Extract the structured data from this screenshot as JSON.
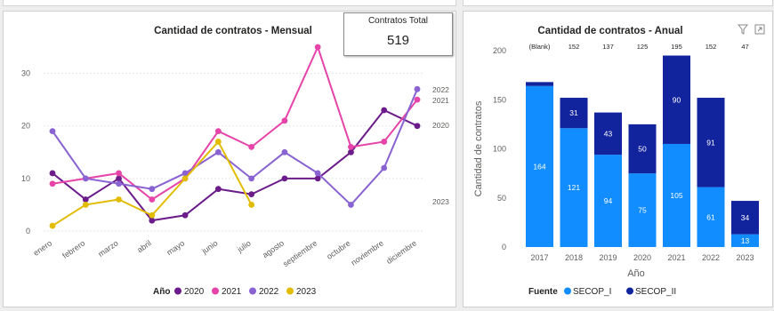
{
  "kpi": {
    "label": "Contratos Total",
    "value": "519"
  },
  "icons": {
    "filter": "filter-icon",
    "focus": "focus-mode-icon"
  },
  "chart_data": [
    {
      "type": "line",
      "title": "Cantidad de contratos - Mensual",
      "xlabel": "",
      "ylabel": "",
      "ylim": [
        0,
        35
      ],
      "yticks": [
        0,
        10,
        20,
        30
      ],
      "categories": [
        "enero",
        "febrero",
        "marzo",
        "abril",
        "mayo",
        "junio",
        "julio",
        "agosto",
        "septiembre",
        "octubre",
        "noviembre",
        "diciembre"
      ],
      "legend_title": "Año",
      "legend_position": "bottom",
      "series": [
        {
          "name": "2020",
          "color": "#6b1b8a",
          "values": [
            11,
            6,
            10,
            2,
            3,
            8,
            7,
            10,
            10,
            15,
            23,
            20
          ]
        },
        {
          "name": "2021",
          "color": "#e644a8",
          "values": [
            9,
            10,
            11,
            6,
            10,
            19,
            16,
            21,
            35,
            16,
            17,
            25
          ]
        },
        {
          "name": "2022",
          "color": "#8a63d2",
          "values": [
            19,
            10,
            9,
            8,
            11,
            15,
            10,
            15,
            11,
            5,
            12,
            27
          ]
        },
        {
          "name": "2023",
          "color": "#e2bc00",
          "values": [
            1,
            5,
            6,
            3,
            10,
            17,
            5,
            null,
            null,
            null,
            null,
            null
          ]
        }
      ],
      "end_labels": [
        "2022",
        "2021",
        "2020",
        "2023"
      ]
    },
    {
      "type": "bar",
      "stacked": true,
      "title": "Cantidad de contratos - Anual",
      "xlabel": "Año",
      "ylabel": "Cantidad de contratos",
      "ylim": [
        0,
        200
      ],
      "yticks": [
        0,
        50,
        100,
        150,
        200
      ],
      "categories": [
        "2017",
        "2018",
        "2019",
        "2020",
        "2021",
        "2022",
        "2023"
      ],
      "totals": [
        "(Blank)",
        "152",
        "137",
        "125",
        "195",
        "152",
        "47"
      ],
      "legend_title": "Fuente",
      "legend_position": "bottom",
      "series": [
        {
          "name": "SECOP_I",
          "color": "#118dff",
          "values": [
            164,
            121,
            94,
            75,
            105,
            61,
            13
          ],
          "labels": [
            "164",
            "121",
            "94",
            "75",
            "105",
            "61",
            "13"
          ]
        },
        {
          "name": "SECOP_II",
          "color": "#12239e",
          "values": [
            4,
            31,
            43,
            50,
            90,
            91,
            34
          ],
          "labels": [
            "",
            "31",
            "43",
            "50",
            "90",
            "91",
            "34"
          ]
        }
      ]
    }
  ]
}
